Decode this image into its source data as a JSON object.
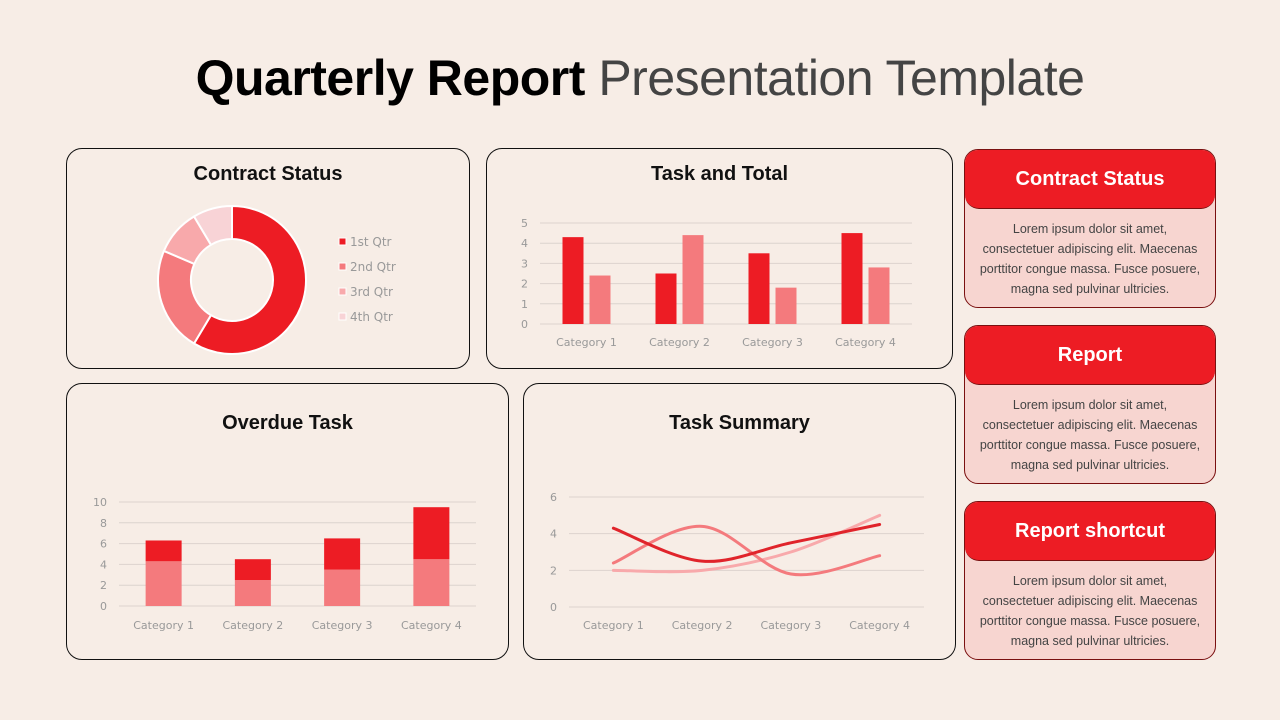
{
  "header": {
    "title_bold": "Quarterly Report",
    "title_light": "Presentation Template"
  },
  "colors": {
    "red": "#ED1C24",
    "pink": "#F47A7D",
    "light_pink": "#F8A9AB",
    "pale_pink": "#F8D3D6",
    "background": "#F7EDE6",
    "panel": "#F7D5D0"
  },
  "side_cards": [
    {
      "title": "Contract Status",
      "text": "Lorem ipsum dolor sit amet, consectetuer adipiscing elit. Maecenas porttitor congue massa. Fusce posuere, magna sed pulvinar ultricies."
    },
    {
      "title": "Report",
      "text": "Lorem ipsum dolor sit amet, consectetuer adipiscing elit. Maecenas porttitor congue massa. Fusce posuere, magna sed pulvinar ultricies."
    },
    {
      "title": "Report shortcut",
      "text": "Lorem ipsum dolor sit amet, consectetuer adipiscing elit. Maecenas porttitor congue massa. Fusce posuere, magna sed pulvinar ultricies."
    }
  ],
  "chart_data": [
    {
      "type": "pie",
      "variant": "donut",
      "title": "Contract Status",
      "categories": [
        "1st Qtr",
        "2nd Qtr",
        "3rd Qtr",
        "4th Qtr"
      ],
      "values": [
        8.2,
        3.2,
        1.4,
        1.2
      ],
      "colors": [
        "#ED1C24",
        "#F47A7D",
        "#F8A9AB",
        "#F8D3D6"
      ],
      "legend": "right"
    },
    {
      "type": "bar",
      "title": "Task and Total",
      "categories": [
        "Category 1",
        "Category 2",
        "Category 3",
        "Category 4"
      ],
      "series": [
        {
          "values": [
            4.3,
            2.5,
            3.5,
            4.5
          ],
          "color": "#ED1C24"
        },
        {
          "values": [
            2.4,
            4.4,
            1.8,
            2.8
          ],
          "color": "#F47A7D"
        }
      ],
      "ylim": [
        0,
        5
      ],
      "yticks": [
        0,
        1,
        2,
        3,
        4,
        5
      ],
      "grid": true
    },
    {
      "type": "bar",
      "variant": "stacked",
      "title": "Overdue Task",
      "categories": [
        "Category 1",
        "Category 2",
        "Category 3",
        "Category 4"
      ],
      "series": [
        {
          "values": [
            4.3,
            2.5,
            3.5,
            4.5
          ],
          "color": "#F47A7D"
        },
        {
          "values": [
            2,
            2,
            3,
            5
          ],
          "color": "#ED1C24"
        }
      ],
      "ylim": [
        0,
        10
      ],
      "yticks": [
        0,
        2,
        4,
        6,
        8,
        10
      ],
      "grid": true
    },
    {
      "type": "line",
      "variant": "smooth",
      "title": "Task Summary",
      "categories": [
        "Category 1",
        "Category 2",
        "Category 3",
        "Category 4"
      ],
      "series": [
        {
          "values": [
            4.3,
            2.5,
            3.5,
            4.5
          ],
          "color": "#E0242B"
        },
        {
          "values": [
            2.4,
            4.4,
            1.8,
            2.8
          ],
          "color": "#F47A7D"
        },
        {
          "values": [
            2,
            2,
            3,
            5
          ],
          "color": "#F8A9AB"
        }
      ],
      "ylim": [
        0,
        6
      ],
      "yticks": [
        0,
        2,
        4,
        6
      ],
      "grid": true
    }
  ]
}
